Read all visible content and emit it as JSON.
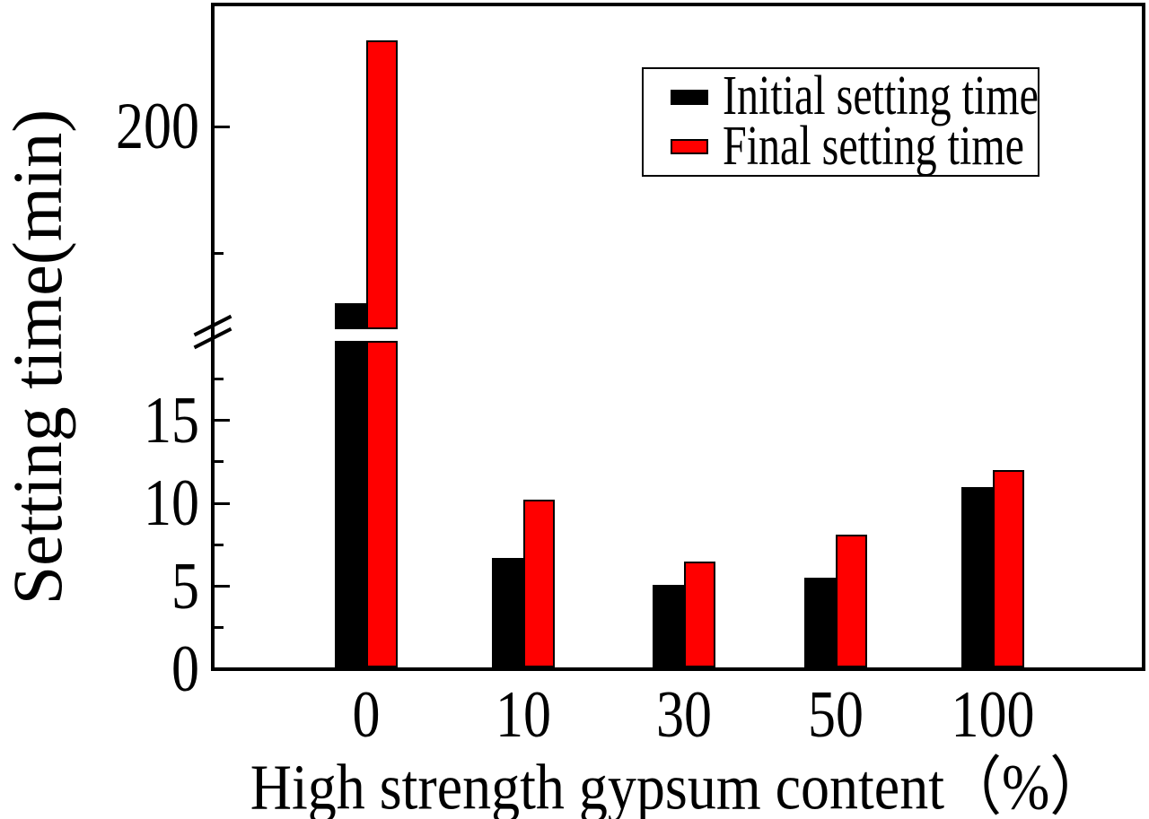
{
  "chart_data": {
    "type": "bar",
    "categories": [
      "0",
      "10",
      "30",
      "50",
      "100"
    ],
    "series": [
      {
        "name": "Initial setting time",
        "color": "#000000",
        "values": [
          165,
          6.7,
          5.1,
          5.5,
          11
        ]
      },
      {
        "name": "Final setting time",
        "color": "#ff0000",
        "values": [
          217,
          10.2,
          6.5,
          8.1,
          12
        ]
      }
    ],
    "title": "",
    "xlabel": "High strength gypsum content（%）",
    "ylabel": "Setting time(min)",
    "grid": false,
    "legend": {
      "position": "upper-right"
    },
    "y_axis": {
      "break": true,
      "lower_range": [
        0,
        20
      ],
      "lower_major_ticks": [
        0,
        5,
        10,
        15
      ],
      "lower_minor_ticks": [
        2.5,
        7.5,
        12.5,
        17.5
      ],
      "upper_range": [
        160,
        225
      ],
      "upper_major_ticks": [
        200
      ],
      "upper_minor_ticks": [
        175
      ]
    },
    "x_axis": {
      "tick_labels": [
        "0",
        "10",
        "30",
        "50",
        "100"
      ]
    }
  }
}
